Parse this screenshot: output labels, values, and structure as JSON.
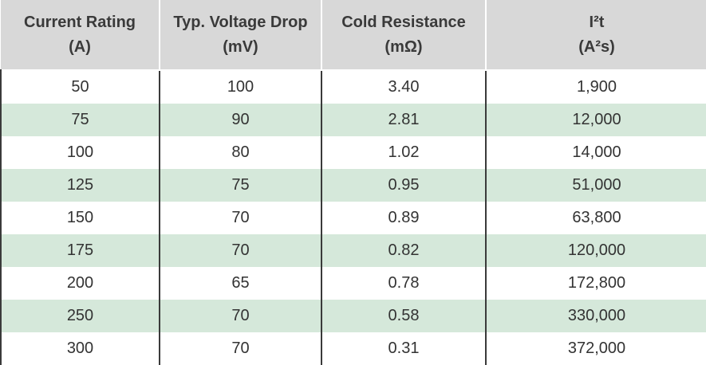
{
  "table": {
    "headers": [
      {
        "line1": "Current Rating",
        "line2": "(A)"
      },
      {
        "line1": "Typ. Voltage Drop",
        "line2": "(mV)"
      },
      {
        "line1": "Cold Resistance",
        "line2": "(mΩ)"
      },
      {
        "line1": "I²t",
        "line2": "(A²s)"
      }
    ],
    "rows": [
      [
        "50",
        "100",
        "3.40",
        "1,900"
      ],
      [
        "75",
        "90",
        "2.81",
        "12,000"
      ],
      [
        "100",
        "80",
        "1.02",
        "14,000"
      ],
      [
        "125",
        "75",
        "0.95",
        "51,000"
      ],
      [
        "150",
        "70",
        "0.89",
        "63,800"
      ],
      [
        "175",
        "70",
        "0.82",
        "120,000"
      ],
      [
        "200",
        "65",
        "0.78",
        "172,800"
      ],
      [
        "250",
        "70",
        "0.58",
        "330,000"
      ],
      [
        "300",
        "70",
        "0.31",
        "372,000"
      ]
    ]
  },
  "colors": {
    "header_background": "#d8d8d8",
    "header_text": "#3a3a3a",
    "alternate_row": "#d5e8da",
    "row": "#ffffff",
    "cell_text": "#333333"
  }
}
